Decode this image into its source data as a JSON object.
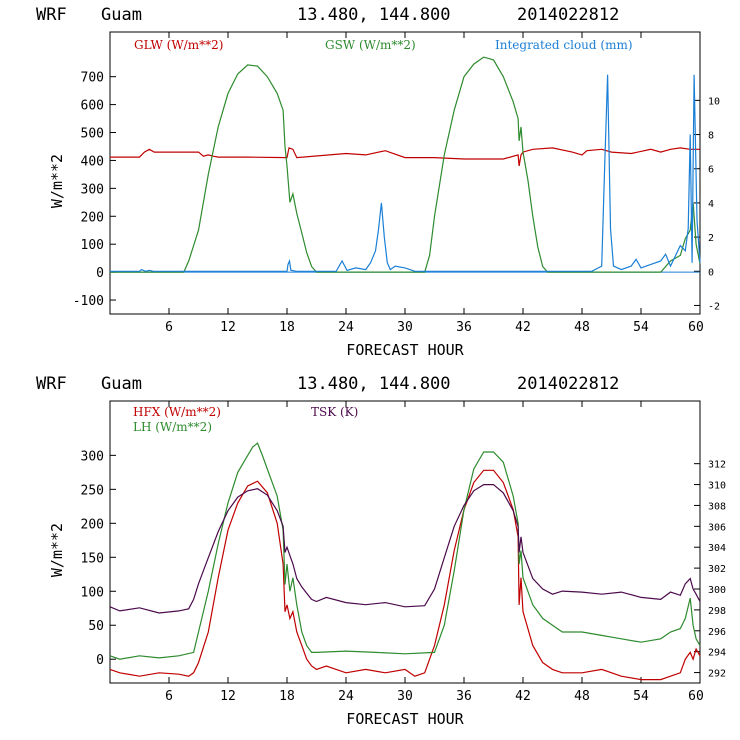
{
  "colors": {
    "red": "#c00000",
    "green": "#2e8b2e",
    "blue": "#1a7fd6",
    "purple": "#4b0a4b"
  },
  "chart_data": [
    {
      "type": "line",
      "header": {
        "model": "WRF",
        "location": "Guam",
        "coords": "13.480, 144.800",
        "run": "2014022812"
      },
      "xlabel": "FORECAST HOUR",
      "ylabel": "W/m**2",
      "xlim": [
        0,
        60
      ],
      "ylim": [
        -150,
        860
      ],
      "xticks": [
        6,
        12,
        18,
        24,
        30,
        36,
        42,
        48,
        54,
        60
      ],
      "yticks": [
        -100,
        0,
        100,
        200,
        300,
        400,
        500,
        600,
        700
      ],
      "y2lim": [
        -2.5,
        14
      ],
      "y2ticks": [
        -2,
        0,
        2,
        4,
        6,
        8,
        10
      ],
      "legend": [
        "GLW (W/m**2)",
        "GSW (W/m**2)",
        "Integrated cloud (mm)"
      ],
      "series": [
        {
          "name": "GLW (W/m**2)",
          "color": "red",
          "axis": "left",
          "x": [
            0,
            3,
            3.5,
            4,
            4.5,
            9,
            9.5,
            10,
            10.5,
            11,
            14,
            18,
            18.2,
            18.6,
            19,
            24,
            26,
            28,
            30,
            33,
            36,
            40,
            41.5,
            41.6,
            41.8,
            42,
            43,
            45,
            47,
            48,
            48.5,
            50,
            51,
            53,
            55,
            56,
            57,
            58,
            59,
            60
          ],
          "y": [
            412,
            412,
            430,
            440,
            430,
            430,
            415,
            420,
            415,
            412,
            412,
            410,
            445,
            440,
            410,
            425,
            420,
            435,
            410,
            410,
            405,
            405,
            420,
            380,
            420,
            430,
            440,
            445,
            430,
            420,
            435,
            440,
            430,
            425,
            440,
            430,
            440,
            445,
            440,
            440
          ]
        },
        {
          "name": "GSW (W/m**2)",
          "color": "green",
          "axis": "left",
          "x": [
            0,
            7.5,
            8,
            9,
            10,
            11,
            12,
            13,
            14,
            15,
            16,
            17,
            17.6,
            17.8,
            18,
            18.3,
            18.6,
            19,
            19.5,
            20,
            20.5,
            21,
            32,
            32.5,
            33,
            34,
            35,
            36,
            37,
            38,
            39,
            40,
            41,
            41.5,
            41.6,
            41.8,
            42,
            42.5,
            43,
            43.5,
            44,
            44.5,
            56,
            57,
            58,
            58.5,
            59,
            59.3,
            59.6,
            60
          ],
          "y": [
            0,
            0,
            40,
            150,
            350,
            520,
            640,
            710,
            742,
            738,
            700,
            640,
            580,
            450,
            380,
            250,
            280,
            210,
            140,
            70,
            20,
            0,
            0,
            60,
            200,
            420,
            580,
            700,
            745,
            770,
            760,
            700,
            610,
            550,
            470,
            520,
            430,
            330,
            200,
            90,
            20,
            0,
            0,
            40,
            60,
            120,
            150,
            250,
            100,
            30
          ]
        },
        {
          "name": "Integrated cloud (mm)",
          "color": "blue",
          "axis": "right",
          "x": [
            0,
            3,
            3.2,
            3.6,
            4,
            4.4,
            7.5,
            18,
            18.1,
            18.25,
            18.4,
            19,
            23,
            23.3,
            23.6,
            24.1,
            25,
            26,
            26.5,
            27,
            27.3,
            27.6,
            27.9,
            28.2,
            28.5,
            29,
            30,
            30.5,
            31,
            49,
            50,
            50.3,
            50.6,
            50.9,
            51.2,
            52,
            53,
            53.5,
            54,
            55,
            56,
            56.5,
            57,
            58,
            58.5,
            58.8,
            59,
            59.2,
            59.4,
            59.7,
            60
          ],
          "y": [
            0,
            0,
            0.1,
            0,
            0.05,
            0,
            0,
            0,
            0.4,
            0.6,
            0.05,
            0,
            0,
            0.3,
            0.6,
            0.05,
            0.2,
            0.1,
            0.5,
            1.2,
            2.4,
            4.0,
            2.0,
            0.5,
            0.1,
            0.3,
            0.2,
            0.1,
            0,
            0,
            0.3,
            6.0,
            11.5,
            2.5,
            0.3,
            0.1,
            0.3,
            0.7,
            0.2,
            0.4,
            0.6,
            1.0,
            0.3,
            1.5,
            1.2,
            2.5,
            8.0,
            0.5,
            11.5,
            3.0,
            0.5
          ]
        }
      ]
    },
    {
      "type": "line",
      "header": {
        "model": "WRF",
        "location": "Guam",
        "coords": "13.480, 144.800",
        "run": "2014022812"
      },
      "xlabel": "FORECAST HOUR",
      "ylabel": "W/m**2",
      "xlim": [
        0,
        60
      ],
      "ylim": [
        -35,
        380
      ],
      "xticks": [
        6,
        12,
        18,
        24,
        30,
        36,
        42,
        48,
        54,
        60
      ],
      "yticks": [
        0,
        50,
        100,
        150,
        200,
        250,
        300
      ],
      "y2lim": [
        291,
        318
      ],
      "y2ticks": [
        292,
        294,
        296,
        298,
        300,
        302,
        304,
        306,
        308,
        310,
        312
      ],
      "legend": [
        "HFX (W/m**2)",
        "LH  (W/m**2)",
        "TSK (K)"
      ],
      "series": [
        {
          "name": "HFX (W/m**2)",
          "color": "red",
          "axis": "left",
          "x": [
            0,
            1,
            3,
            5,
            7,
            8,
            8.5,
            9,
            10,
            11,
            12,
            13,
            14,
            15,
            16,
            17,
            17.6,
            17.8,
            18,
            18.3,
            18.6,
            19,
            19.5,
            20,
            20.5,
            21,
            22,
            24,
            26,
            28,
            30,
            31,
            32,
            33,
            34,
            35,
            36,
            37,
            38,
            39,
            40,
            41,
            41.5,
            41.6,
            41.8,
            42,
            43,
            44,
            45,
            46,
            48,
            50,
            52,
            54,
            56,
            57,
            58,
            58.5,
            59,
            59.3,
            59.6,
            60
          ],
          "y": [
            -15,
            -20,
            -25,
            -20,
            -22,
            -25,
            -20,
            -5,
            40,
            120,
            190,
            230,
            255,
            262,
            245,
            200,
            140,
            70,
            80,
            60,
            70,
            40,
            20,
            0,
            -10,
            -15,
            -10,
            -20,
            -15,
            -20,
            -15,
            -25,
            -20,
            20,
            80,
            160,
            220,
            260,
            278,
            278,
            260,
            220,
            180,
            80,
            120,
            70,
            20,
            -5,
            -15,
            -20,
            -20,
            -15,
            -25,
            -30,
            -30,
            -25,
            -20,
            0,
            10,
            0,
            15,
            5
          ]
        },
        {
          "name": "LH  (W/m**2)",
          "color": "green",
          "axis": "left",
          "x": [
            0,
            1,
            3,
            5,
            7,
            8.5,
            9,
            10,
            11,
            12,
            13,
            14,
            14.5,
            15,
            15.5,
            16,
            17,
            17.6,
            17.8,
            18,
            18.3,
            18.6,
            19,
            19.5,
            20,
            20.5,
            21,
            24,
            27,
            30,
            33,
            34,
            35,
            36,
            37,
            38,
            39,
            40,
            41,
            41.5,
            41.6,
            41.8,
            42,
            43,
            44,
            45,
            46,
            48,
            50,
            52,
            54,
            56,
            57,
            58,
            58.5,
            59,
            59.3,
            59.6,
            60
          ],
          "y": [
            5,
            0,
            5,
            2,
            5,
            10,
            40,
            100,
            170,
            230,
            275,
            300,
            312,
            318,
            300,
            280,
            240,
            190,
            110,
            140,
            100,
            120,
            80,
            40,
            20,
            10,
            10,
            12,
            10,
            8,
            10,
            50,
            130,
            220,
            280,
            305,
            305,
            290,
            240,
            200,
            140,
            160,
            120,
            80,
            60,
            50,
            40,
            40,
            35,
            30,
            25,
            30,
            40,
            45,
            60,
            90,
            50,
            30,
            20
          ]
        },
        {
          "name": "TSK (K)",
          "color": "purple",
          "axis": "right",
          "x": [
            0,
            1,
            3,
            5,
            7,
            8,
            8.5,
            9,
            10,
            11,
            12,
            13,
            14,
            15,
            16,
            17,
            17.6,
            17.8,
            18,
            18.3,
            18.6,
            19,
            19.5,
            20,
            20.5,
            21,
            22,
            24,
            26,
            28,
            30,
            32,
            33,
            34,
            35,
            36,
            37,
            38,
            39,
            40,
            41,
            41.5,
            41.6,
            41.8,
            42,
            43,
            44,
            45,
            46,
            48,
            50,
            52,
            54,
            56,
            57,
            58,
            58.5,
            59,
            59.3,
            59.6,
            60
          ],
          "y": [
            298.3,
            297.9,
            298.2,
            297.7,
            297.9,
            298.1,
            299.0,
            300.5,
            303.0,
            305.5,
            307.5,
            308.8,
            309.4,
            309.6,
            309.0,
            307.5,
            306.0,
            303.5,
            304.0,
            303.2,
            302.4,
            301.0,
            300.2,
            299.6,
            299.0,
            298.8,
            299.2,
            298.7,
            298.5,
            298.7,
            298.3,
            298.4,
            300.0,
            303.0,
            306.0,
            308.0,
            309.4,
            310.0,
            310.0,
            309.2,
            307.5,
            306.0,
            303.5,
            305.0,
            303.5,
            301.0,
            300.0,
            299.5,
            299.8,
            299.7,
            299.5,
            299.7,
            299.2,
            299.0,
            299.7,
            299.4,
            300.5,
            301.0,
            300.0,
            299.5,
            298.8
          ]
        }
      ]
    }
  ]
}
